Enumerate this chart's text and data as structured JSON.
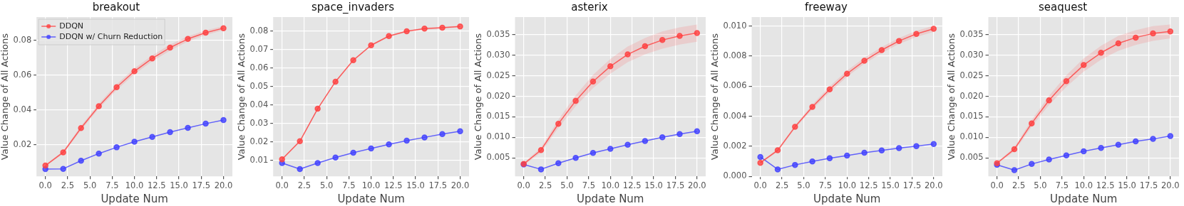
{
  "chart_data": [
    {
      "type": "line",
      "title": "breakout",
      "xlabel": "Update Num",
      "ylabel": "Value Change of All Actions",
      "x": [
        0,
        2,
        4,
        6,
        8,
        10,
        12,
        14,
        16,
        18,
        20
      ],
      "marker": "circle",
      "grid": true,
      "legend": "top left",
      "xlim": [
        -1,
        21
      ],
      "xticks": [
        {
          "value": 0,
          "label": "0.0"
        },
        {
          "value": 2.5,
          "label": "2.5"
        },
        {
          "value": 5,
          "label": "5.0"
        },
        {
          "value": 7.5,
          "label": "7.5"
        },
        {
          "value": 10,
          "label": "10.0"
        },
        {
          "value": 12.5,
          "label": "12.5"
        },
        {
          "value": 15,
          "label": "15.0"
        },
        {
          "value": 17.5,
          "label": "17.5"
        },
        {
          "value": 20,
          "label": "20.0"
        }
      ],
      "ylim": [
        0.0018,
        0.0935
      ],
      "yticks": [
        {
          "value": 0.02,
          "label": "0.02"
        },
        {
          "value": 0.04,
          "label": "0.04"
        },
        {
          "value": 0.06,
          "label": "0.06"
        },
        {
          "value": 0.08,
          "label": "0.08"
        }
      ],
      "series": [
        {
          "name": "DDQN",
          "color": "#ff4040",
          "values": [
            0.008,
            0.0156,
            0.0296,
            0.0422,
            0.0531,
            0.0623,
            0.0697,
            0.0759,
            0.0809,
            0.0845,
            0.0871
          ],
          "lower": [
            0.0075,
            0.0148,
            0.0284,
            0.0408,
            0.0515,
            0.0606,
            0.068,
            0.0742,
            0.0794,
            0.0832,
            0.0859
          ],
          "upper": [
            0.0085,
            0.0164,
            0.0308,
            0.0436,
            0.0547,
            0.064,
            0.0714,
            0.0776,
            0.0824,
            0.0858,
            0.0883
          ]
        },
        {
          "name": "DDQN w/ Churn Reduction",
          "color": "#4040ff",
          "values": [
            0.006,
            0.0061,
            0.0108,
            0.0149,
            0.0185,
            0.0217,
            0.0245,
            0.0272,
            0.0297,
            0.0321,
            0.0342
          ]
        }
      ]
    },
    {
      "type": "line",
      "title": "space_invaders",
      "xlabel": "Update Num",
      "ylabel": "Value Change of All Actions",
      "x": [
        0,
        2,
        4,
        6,
        8,
        10,
        12,
        14,
        16,
        18,
        20
      ],
      "marker": "circle",
      "grid": true,
      "xlim": [
        -1,
        21
      ],
      "xticks": [
        {
          "value": 0,
          "label": "0.0"
        },
        {
          "value": 2.5,
          "label": "2.5"
        },
        {
          "value": 5,
          "label": "5.0"
        },
        {
          "value": 7.5,
          "label": "7.5"
        },
        {
          "value": 10,
          "label": "10.0"
        },
        {
          "value": 12.5,
          "label": "12.5"
        },
        {
          "value": 15,
          "label": "15.0"
        },
        {
          "value": 17.5,
          "label": "17.5"
        },
        {
          "value": 20,
          "label": "20.0"
        }
      ],
      "ylim": [
        0.0013,
        0.0876
      ],
      "yticks": [
        {
          "value": 0.01,
          "label": "0.01"
        },
        {
          "value": 0.02,
          "label": "0.02"
        },
        {
          "value": 0.03,
          "label": "0.03"
        },
        {
          "value": 0.04,
          "label": "0.04"
        },
        {
          "value": 0.05,
          "label": "0.05"
        },
        {
          "value": 0.06,
          "label": "0.06"
        },
        {
          "value": 0.07,
          "label": "0.07"
        },
        {
          "value": 0.08,
          "label": "0.08"
        }
      ],
      "series": [
        {
          "color": "#ff4040",
          "values": [
            0.0105,
            0.0203,
            0.0379,
            0.0526,
            0.0642,
            0.0723,
            0.0773,
            0.0799,
            0.0813,
            0.0818,
            0.0825
          ],
          "lower": [
            0.01,
            0.0198,
            0.0374,
            0.0521,
            0.0637,
            0.0718,
            0.0768,
            0.0794,
            0.0808,
            0.0813,
            0.082
          ],
          "upper": [
            0.011,
            0.0208,
            0.0384,
            0.0531,
            0.0647,
            0.0728,
            0.0778,
            0.0804,
            0.0818,
            0.0823,
            0.083
          ]
        },
        {
          "color": "#4040ff",
          "values": [
            0.0085,
            0.0052,
            0.0085,
            0.0115,
            0.0141,
            0.0164,
            0.0186,
            0.0206,
            0.0224,
            0.0242,
            0.0257
          ]
        }
      ]
    },
    {
      "type": "line",
      "title": "asterix",
      "xlabel": "Update Num",
      "ylabel": "Value Change of All Actions",
      "x": [
        0,
        2,
        4,
        6,
        8,
        10,
        12,
        14,
        16,
        18,
        20
      ],
      "marker": "circle",
      "grid": true,
      "xlim": [
        -1,
        21
      ],
      "xticks": [
        {
          "value": 0,
          "label": "0.0"
        },
        {
          "value": 2.5,
          "label": "2.5"
        },
        {
          "value": 5,
          "label": "5.0"
        },
        {
          "value": 7.5,
          "label": "7.5"
        },
        {
          "value": 10,
          "label": "10.0"
        },
        {
          "value": 12.5,
          "label": "12.5"
        },
        {
          "value": 15,
          "label": "15.0"
        },
        {
          "value": 17.5,
          "label": "17.5"
        },
        {
          "value": 20,
          "label": "20.0"
        }
      ],
      "ylim": [
        0.0005,
        0.0393
      ],
      "yticks": [
        {
          "value": 0.005,
          "label": "0.005"
        },
        {
          "value": 0.01,
          "label": "0.010"
        },
        {
          "value": 0.015,
          "label": "0.015"
        },
        {
          "value": 0.02,
          "label": "0.020"
        },
        {
          "value": 0.025,
          "label": "0.025"
        },
        {
          "value": 0.03,
          "label": "0.030"
        },
        {
          "value": 0.035,
          "label": "0.035"
        }
      ],
      "series": [
        {
          "color": "#ff4040",
          "values": [
            0.0035,
            0.0069,
            0.0133,
            0.0189,
            0.0236,
            0.0273,
            0.0302,
            0.0322,
            0.0337,
            0.0347,
            0.0354
          ],
          "lower": [
            0.0032,
            0.0063,
            0.0123,
            0.0176,
            0.022,
            0.0255,
            0.0283,
            0.0302,
            0.0316,
            0.0326,
            0.0333
          ],
          "upper": [
            0.0038,
            0.0075,
            0.0143,
            0.0202,
            0.0252,
            0.0291,
            0.0321,
            0.0342,
            0.0358,
            0.0368,
            0.0375
          ]
        },
        {
          "color": "#4040ff",
          "values": [
            0.0034,
            0.0022,
            0.0037,
            0.005,
            0.0062,
            0.0072,
            0.0082,
            0.0091,
            0.01,
            0.0108,
            0.0115
          ]
        }
      ]
    },
    {
      "type": "line",
      "title": "freeway",
      "xlabel": "Update Num",
      "ylabel": "Value Change of All Actions",
      "x": [
        0,
        2,
        4,
        6,
        8,
        10,
        12,
        14,
        16,
        18,
        20
      ],
      "marker": "circle",
      "grid": true,
      "xlim": [
        -1,
        21
      ],
      "xticks": [
        {
          "value": 0,
          "label": "0.0"
        },
        {
          "value": 2.5,
          "label": "2.5"
        },
        {
          "value": 5,
          "label": "5.0"
        },
        {
          "value": 7.5,
          "label": "7.5"
        },
        {
          "value": 10,
          "label": "10.0"
        },
        {
          "value": 12.5,
          "label": "12.5"
        },
        {
          "value": 15,
          "label": "15.0"
        },
        {
          "value": 17.5,
          "label": "17.5"
        },
        {
          "value": 20,
          "label": "20.0"
        }
      ],
      "ylim": [
        0,
        0.0106
      ],
      "yticks": [
        {
          "value": 0,
          "label": "0.000"
        },
        {
          "value": 0.002,
          "label": "0.002"
        },
        {
          "value": 0.004,
          "label": "0.004"
        },
        {
          "value": 0.006,
          "label": "0.006"
        },
        {
          "value": 0.008,
          "label": "0.008"
        },
        {
          "value": 0.01,
          "label": "0.010"
        }
      ],
      "series": [
        {
          "color": "#ff4040",
          "values": [
            0.0009,
            0.00173,
            0.00329,
            0.00462,
            0.00579,
            0.00683,
            0.00769,
            0.0084,
            0.00901,
            0.00948,
            0.00982
          ],
          "lower": [
            0.00085,
            0.00163,
            0.00319,
            0.00447,
            0.00559,
            0.00663,
            0.00749,
            0.0082,
            0.00881,
            0.00928,
            0.00962
          ],
          "upper": [
            0.00095,
            0.00183,
            0.00339,
            0.00477,
            0.00599,
            0.00703,
            0.00789,
            0.0086,
            0.00921,
            0.00968,
            0.01002
          ]
        },
        {
          "color": "#4040ff",
          "values": [
            0.00129,
            0.00046,
            0.00076,
            0.00099,
            0.0012,
            0.00138,
            0.00157,
            0.00172,
            0.00188,
            0.00201,
            0.00215
          ]
        }
      ]
    },
    {
      "type": "line",
      "title": "seaquest",
      "xlabel": "Update Num",
      "ylabel": "Value Change of All Actions",
      "x": [
        0,
        2,
        4,
        6,
        8,
        10,
        12,
        14,
        16,
        18,
        20
      ],
      "marker": "circle",
      "grid": true,
      "xlim": [
        -1,
        21
      ],
      "xticks": [
        {
          "value": 0,
          "label": "0.0"
        },
        {
          "value": 2.5,
          "label": "2.5"
        },
        {
          "value": 5,
          "label": "5.0"
        },
        {
          "value": 7.5,
          "label": "7.5"
        },
        {
          "value": 10,
          "label": "10.0"
        },
        {
          "value": 12.5,
          "label": "12.5"
        },
        {
          "value": 15,
          "label": "15.0"
        },
        {
          "value": 17.5,
          "label": "17.5"
        },
        {
          "value": 20,
          "label": "20.0"
        }
      ],
      "ylim": [
        0.0005,
        0.0393
      ],
      "yticks": [
        {
          "value": 0.005,
          "label": "0.005"
        },
        {
          "value": 0.01,
          "label": "0.010"
        },
        {
          "value": 0.015,
          "label": "0.015"
        },
        {
          "value": 0.02,
          "label": "0.020"
        },
        {
          "value": 0.025,
          "label": "0.025"
        },
        {
          "value": 0.03,
          "label": "0.030"
        },
        {
          "value": 0.035,
          "label": "0.035"
        }
      ],
      "series": [
        {
          "color": "#ff4040",
          "values": [
            0.0037,
            0.0071,
            0.0134,
            0.019,
            0.0237,
            0.0276,
            0.0306,
            0.0329,
            0.0343,
            0.0353,
            0.0358
          ],
          "lower": [
            0.0035,
            0.0066,
            0.0126,
            0.0179,
            0.0223,
            0.026,
            0.0289,
            0.0311,
            0.0325,
            0.0335,
            0.0341
          ],
          "upper": [
            0.0039,
            0.0076,
            0.0142,
            0.0201,
            0.0251,
            0.0292,
            0.0323,
            0.0347,
            0.0361,
            0.0371,
            0.0375
          ]
        },
        {
          "color": "#4040ff",
          "values": [
            0.0033,
            0.002,
            0.0035,
            0.0046,
            0.0056,
            0.0066,
            0.0074,
            0.0082,
            0.009,
            0.0096,
            0.0103
          ]
        }
      ]
    }
  ]
}
